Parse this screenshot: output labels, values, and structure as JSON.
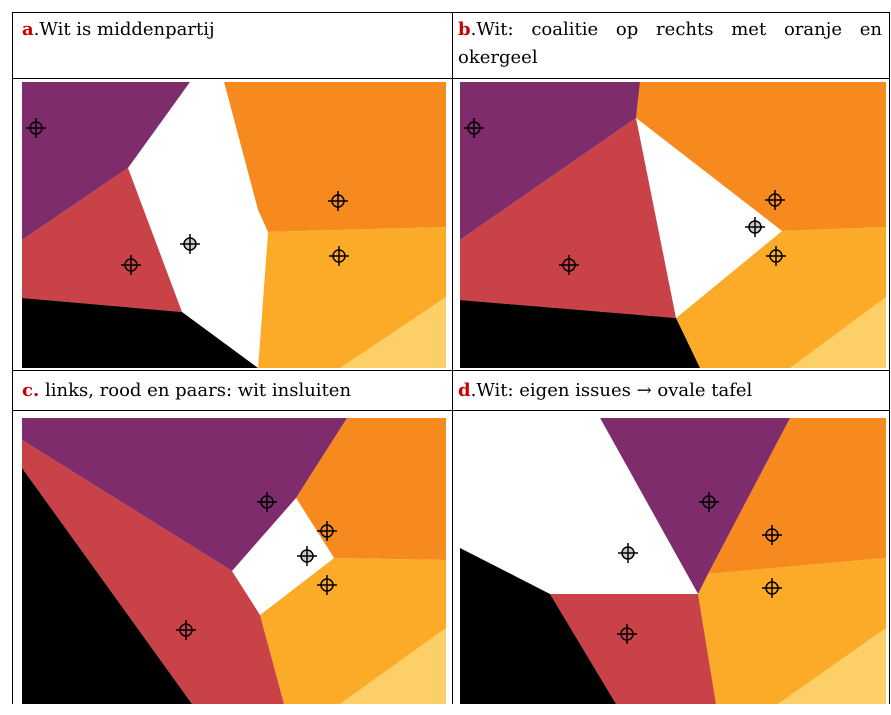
{
  "colors": {
    "purple": "#7f2c6c",
    "red": "#c94248",
    "black": "#000000",
    "white": "#ffffff",
    "orange": "#f78a1e",
    "yellow": "#fcab28",
    "lightyellow": "#fdcf67",
    "title_letter": "#cc0000"
  },
  "panels": {
    "a": {
      "letter": "a",
      "title": ".Wit is middenpartij"
    },
    "b": {
      "letter": "b",
      "title": ".Wit: coalitie op rechts met oranje en okergeel"
    },
    "c": {
      "letter": "c.",
      "title": " links, rood en paars: wit insluiten"
    },
    "d": {
      "letter": "d",
      "title": ".Wit: eigen issues → ovale tafel"
    }
  }
}
